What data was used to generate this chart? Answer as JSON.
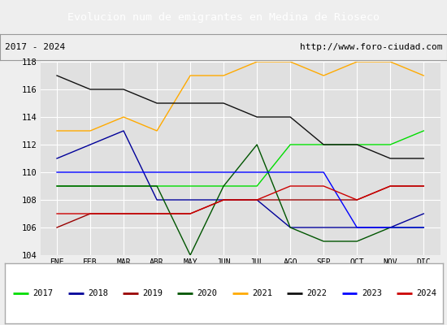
{
  "title": "Evolucion num de emigrantes en Medina de Rioseco",
  "subtitle_left": "2017 - 2024",
  "subtitle_right": "http://www.foro-ciudad.com",
  "months": [
    "ENE",
    "FEB",
    "MAR",
    "ABR",
    "MAY",
    "JUN",
    "JUL",
    "AGO",
    "SEP",
    "OCT",
    "NOV",
    "DIC"
  ],
  "series": {
    "2017": {
      "color": "#00dd00",
      "values": [
        109,
        109,
        109,
        109,
        109,
        109,
        109,
        112,
        112,
        112,
        112,
        113
      ]
    },
    "2018": {
      "color": "#000099",
      "values": [
        111,
        112,
        113,
        108,
        108,
        108,
        108,
        106,
        106,
        106,
        106,
        107
      ]
    },
    "2019": {
      "color": "#990000",
      "values": [
        106,
        107,
        107,
        107,
        107,
        108,
        108,
        108,
        108,
        108,
        109,
        109
      ]
    },
    "2020": {
      "color": "#005500",
      "values": [
        109,
        109,
        109,
        109,
        104,
        109,
        112,
        106,
        105,
        105,
        106,
        106
      ]
    },
    "2021": {
      "color": "#ffaa00",
      "values": [
        113,
        113,
        114,
        113,
        117,
        117,
        118,
        118,
        117,
        118,
        118,
        117
      ]
    },
    "2022": {
      "color": "#111111",
      "values": [
        117,
        116,
        116,
        115,
        115,
        115,
        114,
        114,
        112,
        112,
        111,
        111
      ]
    },
    "2023": {
      "color": "#0000ff",
      "values": [
        110,
        110,
        110,
        110,
        110,
        110,
        110,
        110,
        110,
        106,
        106,
        106
      ]
    },
    "2024": {
      "color": "#cc0000",
      "values": [
        107,
        107,
        107,
        107,
        107,
        108,
        108,
        109,
        109,
        108,
        109,
        109
      ]
    }
  },
  "ylim": [
    104,
    118
  ],
  "yticks": [
    104,
    106,
    108,
    110,
    112,
    114,
    116,
    118
  ],
  "title_bg_color": "#4a90d9",
  "title_text_color": "#ffffff",
  "plot_bg_color": "#e0e0e0",
  "frame_bg_color": "#eeeeee",
  "grid_color": "#ffffff",
  "legend_order": [
    "2017",
    "2018",
    "2019",
    "2020",
    "2021",
    "2022",
    "2023",
    "2024"
  ]
}
